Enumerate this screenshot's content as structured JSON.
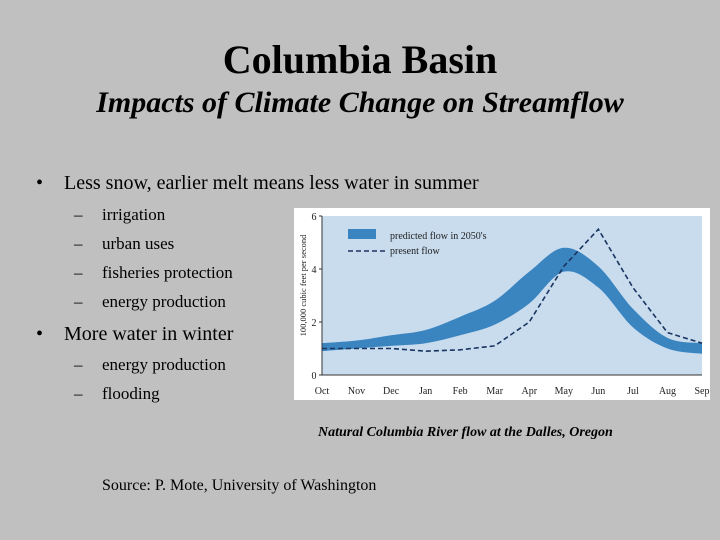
{
  "slide": {
    "title": "Columbia Basin",
    "subtitle": "Impacts of Climate Change on Streamflow",
    "bullet1": {
      "text": "Less snow, earlier melt means less water in summer",
      "subs": [
        "irrigation",
        "urban uses",
        "fisheries protection",
        "energy production"
      ]
    },
    "bullet2": {
      "text": "More water in winter",
      "subs": [
        "energy production",
        "flooding"
      ]
    },
    "caption": "Natural Columbia River flow at the Dalles, Oregon",
    "source": "Source:  P. Mote, University of Washington",
    "bullet_symbol": "•",
    "dash_symbol": "–"
  },
  "chart_data": {
    "type": "area",
    "title": "",
    "xlabel": "",
    "ylabel": "100,000 cubic feet per second",
    "categories": [
      "Oct",
      "Nov",
      "Dec",
      "Jan",
      "Feb",
      "Mar",
      "Apr",
      "May",
      "Jun",
      "Jul",
      "Aug",
      "Sep"
    ],
    "ylim": [
      0,
      6
    ],
    "yticks": [
      0,
      2,
      4,
      6
    ],
    "grid": false,
    "legend_position": "top-left",
    "series": [
      {
        "name": "predicted flow in 2050's",
        "kind": "band",
        "color": "#3a84c0",
        "lower": [
          0.9,
          1.0,
          1.1,
          1.2,
          1.5,
          1.9,
          2.7,
          3.9,
          3.3,
          1.8,
          1.0,
          0.8
        ],
        "upper": [
          1.2,
          1.3,
          1.5,
          1.7,
          2.2,
          2.8,
          3.9,
          4.8,
          4.1,
          2.5,
          1.4,
          1.2
        ]
      },
      {
        "name": "present flow",
        "kind": "line",
        "style": "dashed",
        "color": "#1a3560",
        "values": [
          1.0,
          1.0,
          1.0,
          0.9,
          0.95,
          1.1,
          2.0,
          4.1,
          5.5,
          3.3,
          1.6,
          1.2
        ]
      }
    ],
    "colors": {
      "plot_background": "#c8dcee",
      "frame": "#ffffff"
    }
  }
}
